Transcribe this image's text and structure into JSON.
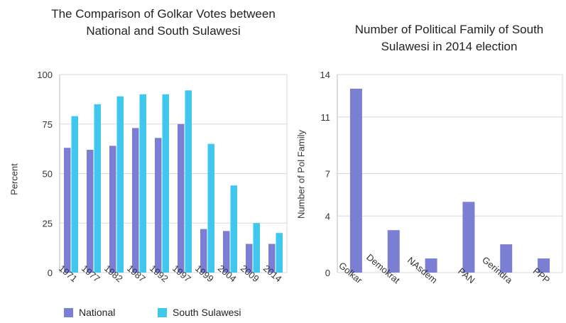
{
  "colors": {
    "national": "#7b7fd4",
    "south_sulawesi": "#3fc7ee",
    "pol_family": "#7b7fd4",
    "grid": "#d8d8d8",
    "axis": "#bbbbbb"
  },
  "chart_data": [
    {
      "type": "bar",
      "title": "The Comparison of Golkar Votes between National and South Sulawesi",
      "xlabel": "",
      "ylabel": "Percent",
      "ylim": [
        0,
        100
      ],
      "yticks": [
        0,
        25,
        50,
        75,
        100
      ],
      "categories": [
        "1971",
        "1977",
        "1982",
        "1987",
        "1992",
        "1997",
        "1999",
        "2004",
        "2009",
        "2014"
      ],
      "series": [
        {
          "name": "National",
          "values": [
            63,
            62,
            64,
            73,
            68,
            75,
            22,
            21,
            14.5,
            14.5
          ]
        },
        {
          "name": "South Sulawesi",
          "values": [
            79,
            85,
            89,
            90,
            90,
            92,
            65,
            44,
            25,
            20
          ]
        }
      ],
      "grid": true,
      "legend": "bottom"
    },
    {
      "type": "bar",
      "title": "Number of Political Family of South Sulawesi in 2014 election",
      "xlabel": "",
      "ylabel": "Number of Pol  Family",
      "ylim": [
        0,
        14
      ],
      "yticks": [
        0,
        4,
        7,
        11,
        14
      ],
      "categories": [
        "Golkar",
        "Demokrat",
        "NAsdem",
        "PAN",
        "Gerindra",
        "PPP"
      ],
      "values": [
        13,
        3,
        1,
        5,
        2,
        1
      ],
      "grid": true
    }
  ]
}
